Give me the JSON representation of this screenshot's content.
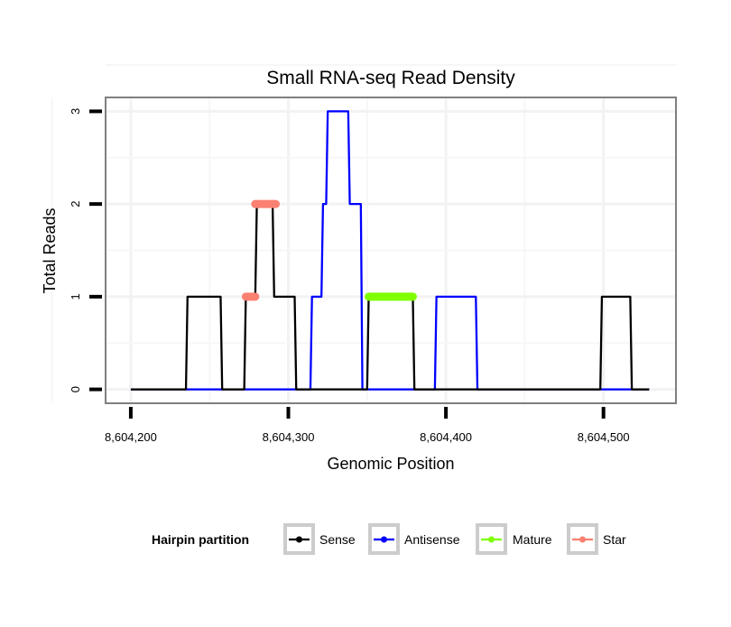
{
  "chart_data": {
    "type": "line",
    "title": "Small RNA-seq Read Density",
    "xlabel": "Genomic Position",
    "ylabel": "Total Reads",
    "xlim": [
      8604184,
      8604546
    ],
    "ylim": [
      -0.15,
      3.15
    ],
    "x_ticks": [
      8604200,
      8604300,
      8604400,
      8604500
    ],
    "x_tick_labels": [
      "8,604,200",
      "8,604,300",
      "8,604,400",
      "8,604,500"
    ],
    "y_ticks": [
      0,
      1,
      2,
      3
    ],
    "y_tick_labels": [
      "0",
      "1",
      "2",
      "3"
    ],
    "grid": true,
    "legend": {
      "title": "Hairpin partition",
      "placement": "bottom",
      "entries": [
        "Sense",
        "Antisense",
        "Mature",
        "Star"
      ]
    },
    "series": [
      {
        "name": "Antisense",
        "color": "#0000ff",
        "kind": "line",
        "x": [
          8604200,
          8604314,
          8604315,
          8604321,
          8604322,
          8604324,
          8604325,
          8604338,
          8604339,
          8604346,
          8604347,
          8604393,
          8604394,
          8604419,
          8604420,
          8604529
        ],
        "y": [
          0,
          0,
          1,
          1,
          2,
          2,
          3,
          3,
          2,
          2,
          0,
          0,
          1,
          1,
          0,
          0
        ]
      },
      {
        "name": "Sense",
        "color": "#000000",
        "kind": "line",
        "x": [
          8604200,
          8604235,
          8604236,
          8604257,
          8604258,
          8604272,
          8604273,
          8604279,
          8604280,
          8604290,
          8604291,
          8604304,
          8604305,
          8604350,
          8604351,
          8604379,
          8604380,
          8604498,
          8604499,
          8604517,
          8604518,
          8604529
        ],
        "y": [
          0,
          0,
          1,
          1,
          0,
          0,
          1,
          1,
          2,
          2,
          1,
          1,
          0,
          0,
          1,
          1,
          0,
          0,
          1,
          1,
          0,
          0
        ]
      },
      {
        "name": "Mature",
        "color": "#7fff00",
        "kind": "segment",
        "x": [
          8604351,
          8604379
        ],
        "y": [
          1,
          1
        ]
      },
      {
        "name": "Star",
        "color": "#fa8072",
        "kind": "segment",
        "x": [
          8604273,
          8604279,
          null,
          8604279,
          8604292
        ],
        "y": [
          1,
          1,
          null,
          2,
          2
        ]
      }
    ]
  }
}
